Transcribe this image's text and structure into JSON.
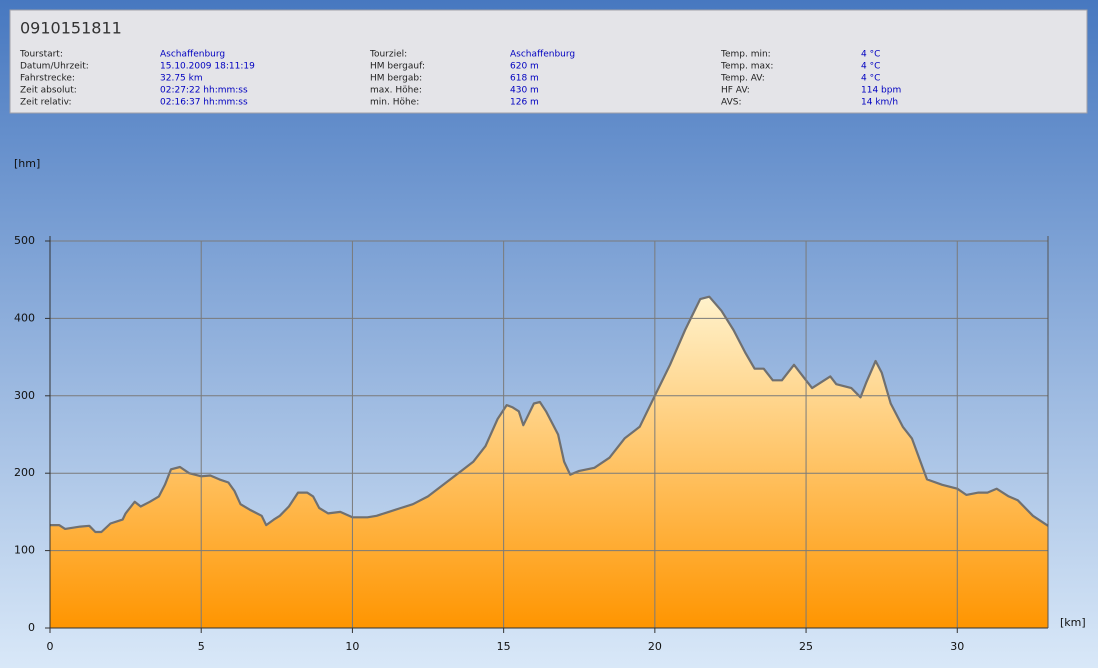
{
  "header": {
    "title": "0910151811",
    "fields": [
      {
        "label": "Tourstart:",
        "value": "Aschaffenburg"
      },
      {
        "label": "Datum/Uhrzeit:",
        "value": "15.10.2009 18:11:19"
      },
      {
        "label": "Fahrstrecke:",
        "value": "32.75 km"
      },
      {
        "label": "Zeit absolut:",
        "value": "02:27:22 hh:mm:ss"
      },
      {
        "label": "Zeit relativ:",
        "value": "02:16:37 hh:mm:ss"
      },
      {
        "label": "Tourziel:",
        "value": "Aschaffenburg"
      },
      {
        "label": "HM bergauf:",
        "value": "620 m"
      },
      {
        "label": "HM bergab:",
        "value": "618 m"
      },
      {
        "label": "max. Höhe:",
        "value": "430 m"
      },
      {
        "label": "min. Höhe:",
        "value": "126 m"
      },
      {
        "label": "Temp. min:",
        "value": "4 °C"
      },
      {
        "label": "Temp. max:",
        "value": "4 °C"
      },
      {
        "label": "Temp. AV:",
        "value": "4 °C"
      },
      {
        "label": "HF AV:",
        "value": "114 bpm"
      },
      {
        "label": "AVS:",
        "value": "14 km/h"
      }
    ]
  },
  "chart_data": {
    "type": "area",
    "ylabel": "[hm]",
    "xlabel": "[km]",
    "fill_top": "#fff2cc",
    "fill_bottom": "#ff9500",
    "color": "#707070",
    "xlim": [
      0,
      33
    ],
    "ylim": [
      0,
      500
    ],
    "xticks": [
      0,
      5,
      10,
      15,
      20,
      25,
      30
    ],
    "yticks": [
      0,
      100,
      200,
      300,
      400,
      500
    ],
    "grid": true,
    "x": [
      0,
      0.3,
      0.5,
      1.0,
      1.3,
      1.5,
      1.7,
      2.0,
      2.4,
      2.5,
      2.8,
      3.0,
      3.3,
      3.6,
      3.8,
      4.0,
      4.3,
      4.6,
      5.0,
      5.3,
      5.6,
      5.9,
      6.1,
      6.3,
      6.6,
      7.0,
      7.15,
      7.4,
      7.6,
      7.9,
      8.2,
      8.5,
      8.7,
      8.9,
      9.2,
      9.6,
      10.0,
      10.5,
      10.8,
      11.2,
      11.6,
      12.0,
      12.5,
      13.0,
      13.5,
      14.0,
      14.4,
      14.8,
      15.1,
      15.3,
      15.5,
      15.65,
      16.0,
      16.2,
      16.4,
      16.8,
      17.0,
      17.2,
      17.5,
      18.0,
      18.5,
      19.0,
      19.5,
      20.0,
      20.5,
      21.0,
      21.5,
      21.8,
      22.2,
      22.6,
      23.0,
      23.3,
      23.6,
      23.9,
      24.2,
      24.6,
      24.8,
      25.2,
      25.6,
      25.8,
      26.0,
      26.5,
      26.8,
      27.0,
      27.3,
      27.5,
      27.8,
      28.2,
      28.5,
      29.0,
      29.5,
      30.0,
      30.3,
      30.7,
      31.0,
      31.3,
      31.7,
      32.0,
      32.5,
      33.0
    ],
    "values": [
      133,
      133,
      128,
      131,
      132,
      124,
      124,
      135,
      140,
      148,
      163,
      157,
      163,
      170,
      185,
      205,
      208,
      200,
      196,
      197,
      192,
      188,
      177,
      160,
      153,
      145,
      133,
      140,
      145,
      157,
      175,
      175,
      170,
      155,
      148,
      150,
      143,
      143,
      145,
      150,
      155,
      160,
      170,
      185,
      200,
      215,
      235,
      270,
      288,
      285,
      280,
      262,
      290,
      292,
      280,
      250,
      215,
      198,
      203,
      207,
      220,
      245,
      260,
      300,
      340,
      385,
      425,
      428,
      410,
      385,
      355,
      335,
      335,
      320,
      320,
      340,
      330,
      310,
      320,
      325,
      315,
      310,
      298,
      318,
      345,
      330,
      290,
      260,
      245,
      192,
      185,
      180,
      172,
      175,
      175,
      180,
      170,
      165,
      145,
      132
    ]
  }
}
